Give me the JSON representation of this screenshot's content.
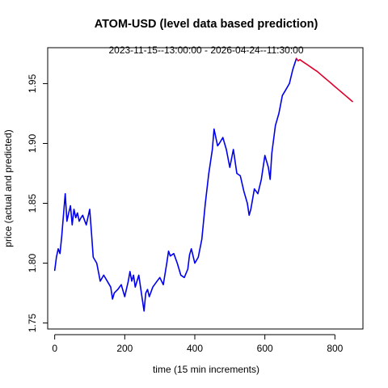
{
  "chart_data": {
    "type": "line",
    "title": "ATOM-USD (level data based prediction)",
    "subtitle": "2023-11-15--13:00:00  -  2026-04-24--11:30:00",
    "xlabel": "time (15 min increments)",
    "ylabel": "price (actual and predicted)",
    "xlim": [
      -20,
      880
    ],
    "ylim": [
      1.745,
      1.98
    ],
    "xticks": [
      0,
      200,
      400,
      600,
      800
    ],
    "xtick_labels": [
      "0",
      "200",
      "400",
      "600",
      "800"
    ],
    "yticks": [
      1.75,
      1.8,
      1.85,
      1.9,
      1.95
    ],
    "ytick_labels": [
      "1.75",
      "1.80",
      "1.85",
      "1.90",
      "1.95"
    ],
    "grid": false,
    "legend": "none",
    "series": [
      {
        "role": "actual",
        "color": "#0000ee",
        "x": [
          0,
          5,
          10,
          15,
          20,
          25,
          30,
          35,
          40,
          45,
          50,
          55,
          60,
          65,
          70,
          75,
          80,
          90,
          100,
          105,
          110,
          120,
          130,
          140,
          150,
          160,
          165,
          170,
          180,
          190,
          200,
          210,
          215,
          220,
          225,
          230,
          240,
          250,
          255,
          260,
          265,
          270,
          280,
          290,
          300,
          310,
          320,
          325,
          330,
          340,
          350,
          360,
          370,
          380,
          385,
          390,
          400,
          410,
          420,
          430,
          440,
          450,
          455,
          460,
          465,
          470,
          480,
          490,
          500,
          510,
          520,
          530,
          540,
          550,
          555,
          560,
          570,
          580,
          590,
          600,
          610,
          615,
          620,
          630,
          640,
          650,
          660,
          670,
          680,
          690
        ],
        "y": [
          1.794,
          1.805,
          1.812,
          1.808,
          1.822,
          1.84,
          1.858,
          1.835,
          1.842,
          1.848,
          1.832,
          1.845,
          1.838,
          1.842,
          1.835,
          1.838,
          1.84,
          1.832,
          1.845,
          1.825,
          1.805,
          1.8,
          1.785,
          1.79,
          1.785,
          1.78,
          1.77,
          1.775,
          1.778,
          1.782,
          1.772,
          1.785,
          1.793,
          1.785,
          1.79,
          1.78,
          1.79,
          1.77,
          1.76,
          1.775,
          1.778,
          1.772,
          1.78,
          1.784,
          1.788,
          1.782,
          1.8,
          1.81,
          1.806,
          1.808,
          1.8,
          1.79,
          1.788,
          1.795,
          1.807,
          1.812,
          1.8,
          1.805,
          1.82,
          1.85,
          1.875,
          1.895,
          1.912,
          1.905,
          1.898,
          1.9,
          1.905,
          1.895,
          1.88,
          1.895,
          1.875,
          1.873,
          1.86,
          1.85,
          1.84,
          1.845,
          1.862,
          1.858,
          1.87,
          1.89,
          1.88,
          1.87,
          1.892,
          1.915,
          1.925,
          1.94,
          1.945,
          1.95,
          1.962,
          1.971
        ]
      },
      {
        "role": "predicted",
        "color": "#e0002a",
        "x": [
          690,
          695,
          700,
          710,
          720,
          730,
          740,
          750,
          760,
          770,
          780,
          790,
          800,
          810,
          820,
          830,
          840,
          850
        ],
        "y": [
          1.971,
          1.969,
          1.97,
          1.968,
          1.966,
          1.964,
          1.962,
          1.96,
          1.9575,
          1.955,
          1.9525,
          1.95,
          1.9475,
          1.945,
          1.9425,
          1.94,
          1.9375,
          1.935
        ]
      }
    ]
  }
}
